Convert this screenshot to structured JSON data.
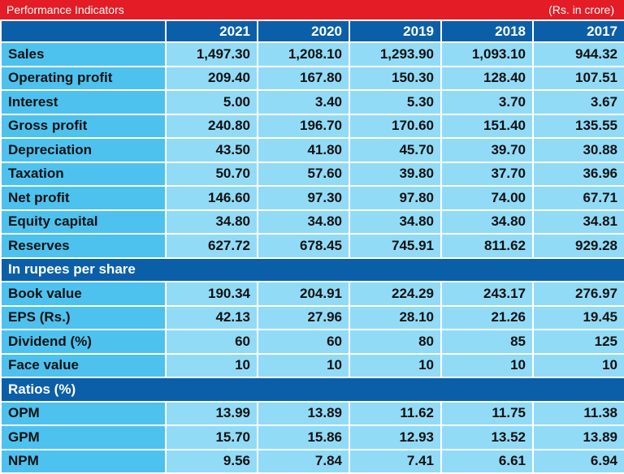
{
  "title": "Performance Indicators",
  "unit": "(Rs. in crore)",
  "years": [
    "2021",
    "2020",
    "2019",
    "2018",
    "2017"
  ],
  "section1_rows": [
    {
      "label": "Sales",
      "values": [
        "1,497.30",
        "1,208.10",
        "1,293.90",
        "1,093.10",
        "944.32"
      ]
    },
    {
      "label": "Operating profit",
      "values": [
        "209.40",
        "167.80",
        "150.30",
        "128.40",
        "107.51"
      ]
    },
    {
      "label": "Interest",
      "values": [
        "5.00",
        "3.40",
        "5.30",
        "3.70",
        "3.67"
      ]
    },
    {
      "label": "Gross profit",
      "values": [
        "240.80",
        "196.70",
        "170.60",
        "151.40",
        "135.55"
      ]
    },
    {
      "label": "Depreciation",
      "values": [
        "43.50",
        "41.80",
        "45.70",
        "39.70",
        "30.88"
      ]
    },
    {
      "label": "Taxation",
      "values": [
        "50.70",
        "57.60",
        "39.80",
        "37.70",
        "36.96"
      ]
    },
    {
      "label": "Net profit",
      "values": [
        "146.60",
        "97.30",
        "97.80",
        "74.00",
        "67.71"
      ]
    },
    {
      "label": "Equity capital",
      "values": [
        "34.80",
        "34.80",
        "34.80",
        "34.80",
        "34.81"
      ]
    },
    {
      "label": "Reserves",
      "values": [
        "627.72",
        "678.45",
        "745.91",
        "811.62",
        "929.28"
      ]
    }
  ],
  "section2_title": "In rupees per share",
  "section2_rows": [
    {
      "label": "Book value",
      "values": [
        "190.34",
        "204.91",
        "224.29",
        "243.17",
        "276.97"
      ]
    },
    {
      "label": "EPS (Rs.)",
      "values": [
        "42.13",
        "27.96",
        "28.10",
        "21.26",
        "19.45"
      ]
    },
    {
      "label": "Dividend (%)",
      "values": [
        "60",
        "60",
        "80",
        "85",
        "125"
      ]
    },
    {
      "label": "Face  value",
      "values": [
        "10",
        "10",
        "10",
        "10",
        "10"
      ]
    }
  ],
  "section3_title": "Ratios (%)",
  "section3_rows": [
    {
      "label": "OPM",
      "values": [
        "13.99",
        "13.89",
        "11.62",
        "11.75",
        "11.38"
      ]
    },
    {
      "label": "GPM",
      "values": [
        "15.70",
        "15.86",
        "12.93",
        "13.52",
        "13.89"
      ]
    },
    {
      "label": "NPM",
      "values": [
        "9.56",
        "7.84",
        "7.41",
        "6.61",
        "6.94"
      ]
    }
  ]
}
